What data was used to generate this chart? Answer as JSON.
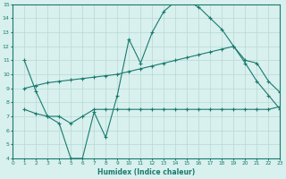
{
  "line1_x": [
    1,
    2,
    3,
    4,
    5,
    6,
    7,
    8,
    9,
    10,
    11,
    12,
    13,
    14,
    15,
    16,
    17,
    18,
    19,
    20,
    21,
    22,
    23
  ],
  "line1_y": [
    11.0,
    8.8,
    7.0,
    6.5,
    4.0,
    4.0,
    7.3,
    5.5,
    8.5,
    12.5,
    10.8,
    13.0,
    14.5,
    15.2,
    15.2,
    14.8,
    14.0,
    13.2,
    12.0,
    10.8,
    9.5,
    8.5,
    7.5
  ],
  "line2_x": [
    1,
    2,
    3,
    4,
    5,
    6,
    7,
    8,
    9,
    10,
    11,
    12,
    13,
    14,
    15,
    16,
    17,
    18,
    19,
    20,
    21,
    22,
    23
  ],
  "line2_y": [
    9.0,
    9.2,
    9.4,
    9.5,
    9.6,
    9.7,
    9.8,
    9.9,
    10.0,
    10.2,
    10.4,
    10.6,
    10.8,
    11.0,
    11.2,
    11.4,
    11.6,
    11.8,
    12.0,
    11.0,
    10.8,
    9.5,
    8.7
  ],
  "line3_x": [
    1,
    2,
    3,
    4,
    5,
    6,
    7,
    8,
    9,
    10,
    11,
    12,
    13,
    14,
    15,
    16,
    17,
    18,
    19,
    20,
    21,
    22,
    23
  ],
  "line3_y": [
    7.5,
    7.2,
    7.0,
    7.0,
    6.5,
    7.0,
    7.5,
    7.5,
    7.5,
    7.5,
    7.5,
    7.5,
    7.5,
    7.5,
    7.5,
    7.5,
    7.5,
    7.5,
    7.5,
    7.5,
    7.5,
    7.5,
    7.7
  ],
  "line_color": "#1a7a6e",
  "bg_color": "#d8f0ee",
  "grid_color": "#b8d8d4",
  "xlabel": "Humidex (Indice chaleur)",
  "ylim": [
    4,
    15
  ],
  "xlim": [
    0,
    23
  ],
  "yticks": [
    4,
    5,
    6,
    7,
    8,
    9,
    10,
    11,
    12,
    13,
    14,
    15
  ],
  "xticks": [
    0,
    1,
    2,
    3,
    4,
    5,
    6,
    7,
    8,
    9,
    10,
    11,
    12,
    13,
    14,
    15,
    16,
    17,
    18,
    19,
    20,
    21,
    22,
    23
  ]
}
